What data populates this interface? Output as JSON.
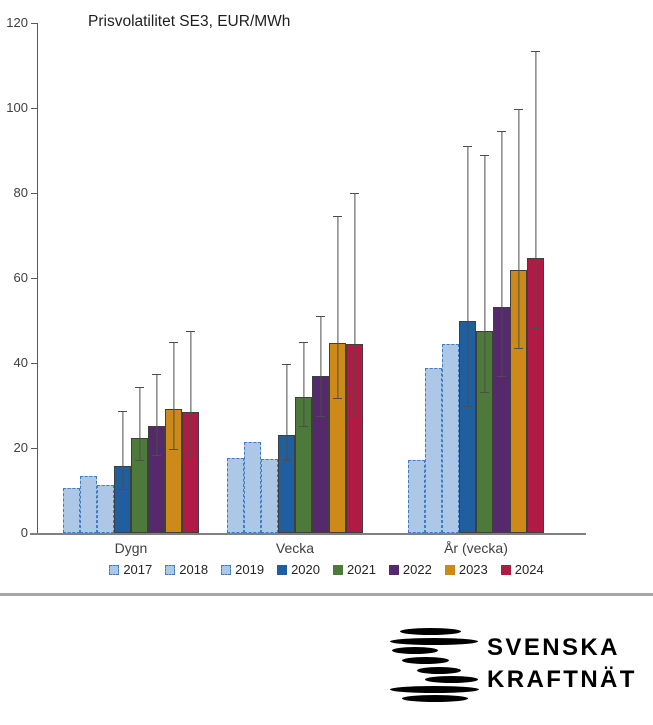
{
  "title": "Prisvolatilitet SE3, EUR/MWh",
  "chart_data": {
    "type": "bar",
    "title": "Prisvolatilitet SE3, EUR/MWh",
    "subtitle": "",
    "categories": [
      "Dygn",
      "Vecka",
      "År (vecka)"
    ],
    "xlabel": "",
    "ylabel": "EUR/MWh",
    "ylim": [
      0,
      120
    ],
    "yticks": [
      0,
      20,
      40,
      60,
      80,
      100,
      120
    ],
    "grid": false,
    "legend_position": "bottom",
    "error_bars": "min-max whiskers on 2020-2024 series only",
    "series": [
      {
        "name": "2017",
        "style": "dashed",
        "fill": "#ADC7E6",
        "border": "#3E7CC4",
        "values": [
          10.7,
          17.6,
          17.2
        ]
      },
      {
        "name": "2018",
        "style": "dashed",
        "fill": "#ADC7E6",
        "border": "#3E7CC4",
        "values": [
          13.5,
          21.5,
          38.9
        ]
      },
      {
        "name": "2019",
        "style": "dashed",
        "fill": "#ADC7E6",
        "border": "#3E7CC4",
        "values": [
          11.2,
          17.4,
          44.4
        ]
      },
      {
        "name": "2020",
        "style": "solid",
        "fill": "#1F5FA0",
        "values": [
          15.8,
          23.1,
          49.8
        ],
        "err_low": [
          10.1,
          16.9,
          29.6
        ],
        "err_high": [
          28.6,
          39.7,
          91.0
        ]
      },
      {
        "name": "2021",
        "style": "solid",
        "fill": "#4D7A3A",
        "values": [
          22.4,
          32.1,
          47.5
        ],
        "err_low": [
          16.9,
          25.0,
          33.0
        ],
        "err_high": [
          34.3,
          44.9,
          89.0
        ]
      },
      {
        "name": "2022",
        "style": "solid",
        "fill": "#55296B",
        "values": [
          25.1,
          37.0,
          53.1
        ],
        "err_low": [
          18.1,
          27.2,
          36.6
        ],
        "err_high": [
          37.4,
          51.0,
          94.6
        ]
      },
      {
        "name": "2023",
        "style": "solid",
        "fill": "#CE8A19",
        "values": [
          29.1,
          44.7,
          62.0
        ],
        "err_low": [
          19.6,
          31.6,
          43.2
        ],
        "err_high": [
          45.0,
          74.5,
          99.7
        ]
      },
      {
        "name": "2024",
        "style": "solid",
        "fill": "#B11A44",
        "values": [
          28.4,
          44.5,
          64.8
        ],
        "err_low": [
          17.2,
          27.1,
          48.0
        ],
        "err_high": [
          47.5,
          80.0,
          113.5
        ]
      }
    ]
  },
  "colors": {
    "axis": "#595959",
    "baseline": "#808080",
    "tick_text": "#404040",
    "divider": "#A6A6A6"
  },
  "footer": {
    "logo_text_line1": "SVENSKA",
    "logo_text_line2": "KRAFTNÄT"
  }
}
